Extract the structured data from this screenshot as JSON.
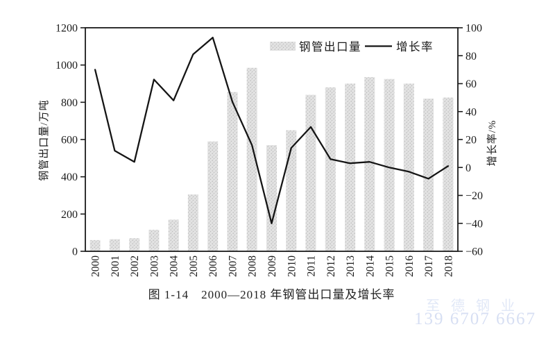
{
  "page": {
    "caption": "图 1-14　2000—2018 年钢管出口量及增长率",
    "watermark": {
      "company": "至德钢业",
      "phone": "139 6707 6667",
      "company_color": "#e1e8f7",
      "phone_color": "#d7dff3"
    }
  },
  "chart_data": {
    "type": "bar",
    "subtype": "bar-line-combo",
    "title": "2000—2018 年钢管出口量及增长率",
    "categories": [
      "2000",
      "2001",
      "2002",
      "2003",
      "2004",
      "2005",
      "2006",
      "2007",
      "2008",
      "2009",
      "2010",
      "2011",
      "2012",
      "2013",
      "2014",
      "2015",
      "2016",
      "2017",
      "2018"
    ],
    "series": [
      {
        "name": "钢管出口量",
        "type": "bar",
        "axis": "left",
        "values": [
          60,
          65,
          70,
          115,
          170,
          305,
          590,
          855,
          985,
          570,
          650,
          840,
          880,
          900,
          935,
          925,
          900,
          820,
          825
        ]
      },
      {
        "name": "增长率",
        "type": "line",
        "axis": "right",
        "values": [
          70,
          12,
          4,
          63,
          48,
          81,
          93,
          47,
          16,
          -40,
          14,
          29,
          6,
          3,
          4,
          0,
          -3,
          -8,
          1
        ]
      }
    ],
    "left_axis": {
      "label": "钢管出口量/万吨",
      "min": 0,
      "max": 1200,
      "step": 200,
      "ticks": [
        0,
        200,
        400,
        600,
        800,
        1000,
        1200
      ]
    },
    "right_axis": {
      "label": "增长率/%",
      "min": -60,
      "max": 100,
      "step": 20,
      "ticks": [
        -60,
        -40,
        -20,
        0,
        20,
        40,
        60,
        80,
        100
      ]
    },
    "legend": {
      "position": "top-inside",
      "entries": [
        "钢管出口量",
        "增长率"
      ]
    },
    "grid": false,
    "colors": {
      "bar_fill": "#e2e2e2",
      "bar_speckle": "#b3b3b3",
      "line": "#151515",
      "frame": "#1a1a1a",
      "text": "#1a1a1a"
    }
  }
}
